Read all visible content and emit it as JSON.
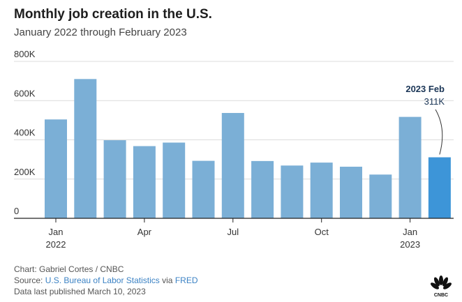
{
  "header": {
    "title": "Monthly job creation in the U.S.",
    "subtitle": "January 2022 through February 2023"
  },
  "chart_data": {
    "type": "bar",
    "title": "Monthly job creation in the U.S.",
    "subtitle": "January 2022 through February 2023",
    "xlabel": "",
    "ylabel": "",
    "ylim": [
      0,
      800000
    ],
    "yticks": [
      0,
      200000,
      400000,
      600000,
      800000
    ],
    "ytick_labels": [
      "0",
      "200K",
      "400K",
      "600K",
      "800K"
    ],
    "grid": true,
    "categories": [
      "Jan 2022",
      "Feb 2022",
      "Mar 2022",
      "Apr 2022",
      "May 2022",
      "Jun 2022",
      "Jul 2022",
      "Aug 2022",
      "Sep 2022",
      "Oct 2022",
      "Nov 2022",
      "Dec 2022",
      "Jan 2023",
      "Feb 2023"
    ],
    "values": [
      504000,
      710000,
      398000,
      368000,
      386000,
      293000,
      537000,
      292000,
      269000,
      284000,
      263000,
      223000,
      517000,
      311000
    ],
    "xtick_labels": [
      {
        "index": 0,
        "line1": "Jan",
        "line2": "2022"
      },
      {
        "index": 3,
        "line1": "Apr",
        "line2": ""
      },
      {
        "index": 6,
        "line1": "Jul",
        "line2": ""
      },
      {
        "index": 9,
        "line1": "Oct",
        "line2": ""
      },
      {
        "index": 12,
        "line1": "Jan",
        "line2": "2023"
      }
    ],
    "highlight_index": 13,
    "annotation": {
      "label": "2023 Feb",
      "value_text": "311K"
    },
    "colors": {
      "bar": "#7bafd6",
      "highlight": "#3d95d8",
      "grid": "#dcdcdc",
      "axis": "#222222",
      "annotation_title": "#1a3556"
    }
  },
  "footer": {
    "credit": "Chart: Gabriel Cortes / CNBC",
    "source_prefix": "Source:",
    "source_link": "U.S. Bureau of Labor Statistics",
    "source_via": "via",
    "source_link2": "FRED",
    "published": "Data last published March 10, 2023"
  },
  "logo": {
    "name": "CNBC",
    "text": "CNBC"
  }
}
